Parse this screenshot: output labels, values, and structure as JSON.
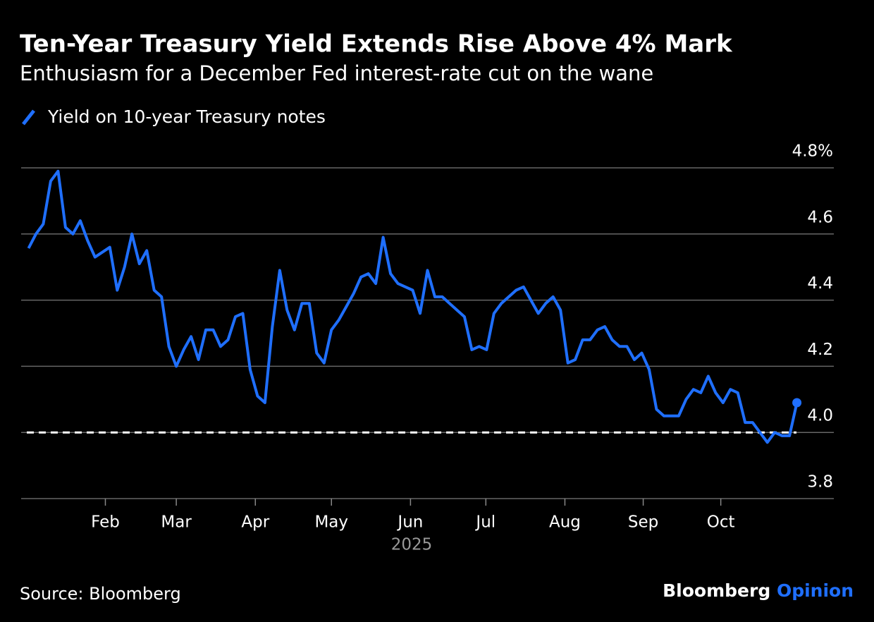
{
  "chart_data": {
    "type": "line",
    "title": "Ten-Year Treasury Yield Extends Rise Above 4% Mark",
    "subtitle": "Enthusiasm for a December Fed interest-rate cut on the wane",
    "xlabel": "2025",
    "source": "Source: Bloomberg",
    "brand": "Bloomberg",
    "brand_suffix": "Opinion",
    "series": [
      {
        "name": "Yield on 10-year Treasury notes",
        "color": "#1f6fff",
        "values": [
          4.557,
          4.6,
          4.63,
          4.76,
          4.79,
          4.62,
          4.6,
          4.64,
          4.58,
          4.53,
          4.545,
          4.56,
          4.43,
          4.5,
          4.6,
          4.51,
          4.55,
          4.43,
          4.41,
          4.26,
          4.2,
          4.25,
          4.29,
          4.22,
          4.31,
          4.31,
          4.26,
          4.28,
          4.35,
          4.36,
          4.19,
          4.11,
          4.09,
          4.32,
          4.49,
          4.37,
          4.31,
          4.39,
          4.39,
          4.24,
          4.21,
          4.31,
          4.34,
          4.38,
          4.42,
          4.47,
          4.48,
          4.45,
          4.59,
          4.48,
          4.45,
          4.44,
          4.43,
          4.36,
          4.49,
          4.41,
          4.41,
          4.39,
          4.37,
          4.35,
          4.25,
          4.26,
          4.25,
          4.36,
          4.39,
          4.41,
          4.43,
          4.44,
          4.4,
          4.36,
          4.39,
          4.41,
          4.37,
          4.21,
          4.22,
          4.28,
          4.28,
          4.31,
          4.32,
          4.28,
          4.26,
          4.26,
          4.22,
          4.24,
          4.19,
          4.07,
          4.05,
          4.05,
          4.05,
          4.1,
          4.13,
          4.12,
          4.17,
          4.12,
          4.09,
          4.13,
          4.12,
          4.03,
          4.03,
          4.0,
          3.97,
          4.0,
          3.99,
          3.99,
          4.09
        ]
      }
    ],
    "xlim": [
      -1,
      109
    ],
    "xticks": [
      {
        "value": 10.4,
        "label": "Feb"
      },
      {
        "value": 20,
        "label": "Mar"
      },
      {
        "value": 30.7,
        "label": "Apr"
      },
      {
        "value": 41,
        "label": "May"
      },
      {
        "value": 51.7,
        "label": "Jun"
      },
      {
        "value": 61.9,
        "label": "Jul"
      },
      {
        "value": 72.6,
        "label": "Aug"
      },
      {
        "value": 83.2,
        "label": "Sep"
      },
      {
        "value": 93.7,
        "label": "Oct"
      }
    ],
    "ylim": [
      3.8,
      4.8
    ],
    "yticks": [
      {
        "value": 4.8,
        "label": "4.8%"
      },
      4.6,
      4.4,
      4.2,
      {
        "value": 4,
        "label": "4.0"
      },
      3.8
    ],
    "reference_line": 4,
    "grid": true
  }
}
